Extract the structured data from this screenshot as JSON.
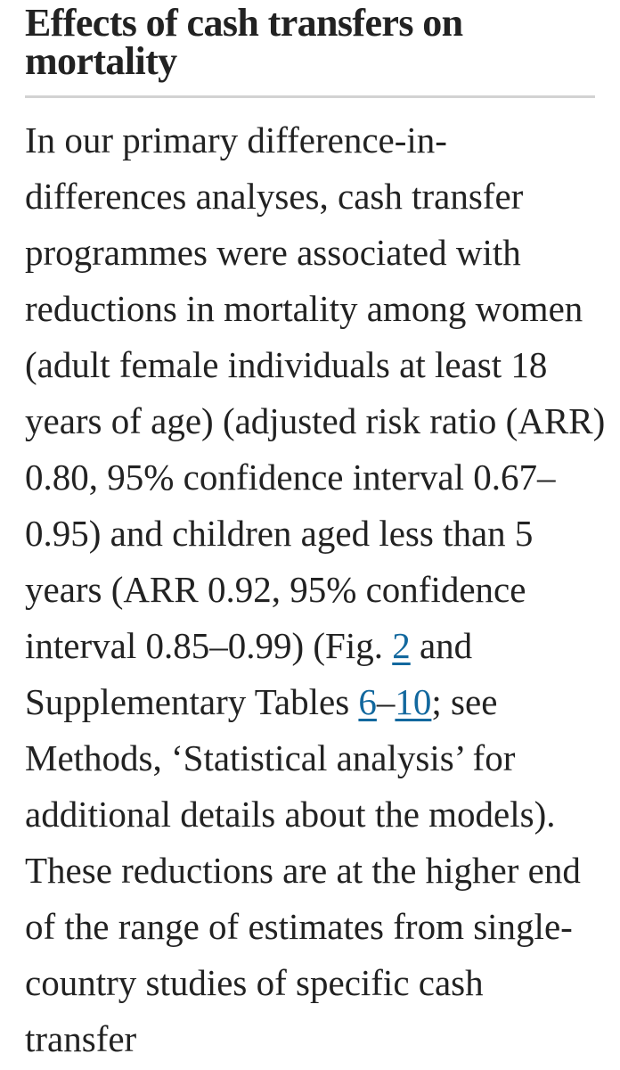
{
  "colors": {
    "background": "#ffffff",
    "body_text": "#222222",
    "link": "#12689e",
    "divider": "#d2d2d2"
  },
  "article": {
    "section_heading": "Effects of cash transfers on mortality",
    "paragraph_lines": [
      {
        "segments": [
          {
            "text": "In our primary difference-in-",
            "link": false
          }
        ]
      },
      {
        "segments": [
          {
            "text": "differences analyses, cash transfer",
            "link": false
          }
        ]
      },
      {
        "segments": [
          {
            "text": "programmes were associated with",
            "link": false
          }
        ]
      },
      {
        "segments": [
          {
            "text": "reductions in mortality among women",
            "link": false
          }
        ]
      },
      {
        "segments": [
          {
            "text": "(adult female individuals at least 18",
            "link": false
          }
        ]
      },
      {
        "segments": [
          {
            "text": "years of age) (adjusted risk ratio (ARR)",
            "link": false
          }
        ]
      },
      {
        "segments": [
          {
            "text": "0.80, 95% confidence interval 0.67–",
            "link": false
          }
        ]
      },
      {
        "segments": [
          {
            "text": "0.95) and children aged less than 5",
            "link": false
          }
        ]
      },
      {
        "segments": [
          {
            "text": "years (ARR 0.92, 95% confidence",
            "link": false
          }
        ]
      },
      {
        "segments": [
          {
            "text": "interval 0.85–0.99) (Fig. ",
            "link": false
          },
          {
            "text": "2",
            "link": true,
            "name": "figure-2-link"
          },
          {
            "text": " and",
            "link": false
          }
        ]
      },
      {
        "segments": [
          {
            "text": "Supplementary Tables ",
            "link": false
          },
          {
            "text": "6",
            "link": true,
            "name": "supplementary-table-6-link"
          },
          {
            "text": "–",
            "link": false
          },
          {
            "text": "10",
            "link": true,
            "name": "supplementary-table-10-link"
          },
          {
            "text": "; see",
            "link": false
          }
        ]
      },
      {
        "segments": [
          {
            "text": "Methods, ‘Statistical analysis’ for",
            "link": false
          }
        ]
      },
      {
        "segments": [
          {
            "text": "additional details about the models).",
            "link": false
          }
        ]
      },
      {
        "segments": [
          {
            "text": "These reductions are at the higher end",
            "link": false
          }
        ]
      },
      {
        "segments": [
          {
            "text": "of the range of estimates from single-",
            "link": false
          }
        ]
      },
      {
        "segments": [
          {
            "text": "country studies of specific cash",
            "link": false
          }
        ]
      },
      {
        "segments": [
          {
            "text": "transfer",
            "link": false
          }
        ]
      }
    ]
  }
}
